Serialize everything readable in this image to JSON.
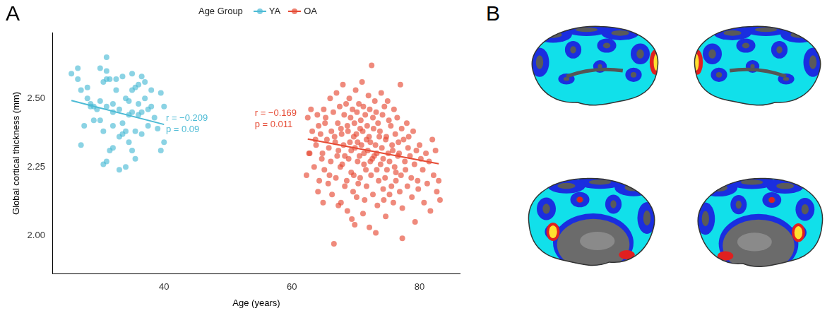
{
  "panel_labels": [
    "A",
    "B"
  ],
  "chart_data": {
    "type": "scatter",
    "legend": "top",
    "legend_title": "Age Group",
    "x_label": "Age (years)",
    "y_label": "Global cortical thickness (mm)",
    "xlim": [
      22.6,
      86.3
    ],
    "xticks": [
      40,
      60,
      80
    ],
    "ylim": [
      1.86,
      2.74
    ],
    "yticks": [
      {
        "value": 2,
        "label": "2.00"
      },
      2.25,
      {
        "value": 2.5,
        "label": "2.50"
      }
    ],
    "grid": false,
    "series": [
      {
        "name": "YA",
        "color": "#4DBBD5",
        "x": [
          25.5,
          26.5,
          26.5,
          27,
          27,
          27.5,
          28,
          28.5,
          28.5,
          29,
          29,
          29.5,
          30,
          30,
          30,
          30.5,
          30.5,
          30.5,
          31,
          31,
          31,
          31,
          31,
          31.5,
          31.5,
          32,
          32,
          32,
          32.5,
          32.5,
          33,
          33,
          33,
          33.5,
          33.5,
          33.5,
          34,
          34,
          34,
          34.5,
          34.5,
          34.5,
          35,
          35,
          35,
          35,
          35.5,
          35.5,
          35.5,
          36,
          36,
          36.5,
          36.5,
          36.5,
          37,
          37,
          37.5,
          37.5,
          38,
          38,
          38.5,
          39,
          39.5,
          39.5,
          40,
          40,
          28,
          32,
          36
        ],
        "values": [
          2.59,
          2.61,
          2.57,
          2.53,
          2.33,
          2.4,
          2.54,
          2.48,
          2.47,
          2.47,
          2.42,
          2.46,
          2.61,
          2.49,
          2.42,
          2.56,
          2.38,
          2.26,
          2.65,
          2.6,
          2.57,
          2.47,
          2.27,
          2.57,
          2.31,
          2.48,
          2.45,
          2.4,
          2.57,
          2.53,
          2.36,
          2.24,
          2.46,
          2.58,
          2.41,
          2.37,
          2.5,
          2.38,
          2.25,
          2.49,
          2.44,
          2.34,
          2.59,
          2.53,
          2.45,
          2.31,
          2.54,
          2.28,
          2.38,
          2.55,
          2.44,
          2.58,
          2.45,
          2.37,
          2.56,
          2.5,
          2.46,
          2.4,
          2.53,
          2.47,
          2.43,
          2.39,
          2.52,
          2.31,
          2.47,
          2.34,
          2.5,
          2.32,
          2.48
        ],
        "fit": {
          "x": [
            25.5,
            40
          ],
          "values": [
            2.492,
            2.405
          ]
        }
      },
      {
        "name": "OA",
        "color": "#E64B35",
        "x": [
          62.5,
          62.7,
          62.3,
          63,
          63.2,
          62.8,
          63.5,
          63.7,
          64,
          64.2,
          63.8,
          64.1,
          64.5,
          64.7,
          64.3,
          65,
          65.2,
          64.8,
          65.1,
          64.9,
          65.5,
          65.7,
          65.3,
          66,
          66.2,
          65.8,
          66.1,
          65.9,
          66.5,
          66.7,
          66.3,
          66.6,
          67,
          67.2,
          66.8,
          67.1,
          66.9,
          67.3,
          67.5,
          67.7,
          67.3,
          67.6,
          68,
          68.2,
          67.8,
          68.1,
          67.9,
          68.3,
          67.7,
          68.5,
          68.7,
          68.3,
          68.6,
          69,
          69.2,
          68.8,
          69.1,
          68.9,
          69.3,
          68.7,
          69.5,
          69.7,
          69.3,
          69.6,
          69.4,
          70,
          70.2,
          69.8,
          70.1,
          69.9,
          70.3,
          69.7,
          70.15,
          69.85,
          70.5,
          70.7,
          70.3,
          70.6,
          70.4,
          71,
          71.2,
          70.8,
          71.1,
          70.9,
          71.3,
          70.7,
          71.15,
          71.5,
          71.7,
          71.3,
          71.6,
          71.4,
          72,
          72.2,
          71.8,
          72.1,
          71.9,
          72.3,
          71.7,
          72.15,
          72.5,
          72.7,
          72.3,
          72.6,
          72.4,
          73,
          73.2,
          72.8,
          73.1,
          72.9,
          73.3,
          72.7,
          73.15,
          73.5,
          73.7,
          73.3,
          73.6,
          73.4,
          74,
          74.2,
          73.8,
          74.1,
          73.9,
          74.3,
          74.5,
          74.7,
          74.3,
          74.6,
          74.4,
          75,
          75.2,
          74.8,
          75.1,
          74.9,
          75.3,
          74.7,
          75.5,
          75.7,
          75.3,
          75.6,
          76,
          76.2,
          75.8,
          76.1,
          75.9,
          76.3,
          76.5,
          76.7,
          76.3,
          76.6,
          77,
          77.2,
          76.8,
          77.1,
          76.9,
          77.3,
          77.5,
          77.7,
          77.3,
          78,
          78.2,
          77.8,
          78.1,
          78.5,
          78.7,
          78.3,
          79,
          79.2,
          78.8,
          79.5,
          79.7,
          79.3,
          80,
          80.2,
          79.8,
          80.5,
          80.7,
          81,
          81.2,
          81.5,
          81.7,
          82,
          82.2,
          82.5,
          82.7,
          83,
          83.2
        ],
        "values": [
          2.43,
          2.3,
          2.22,
          2.46,
          2.38,
          2.3,
          2.25,
          2.35,
          2.44,
          2.4,
          2.33,
          2.16,
          2.37,
          2.28,
          2.2,
          2.46,
          2.41,
          2.3,
          2.24,
          2.12,
          2.35,
          2.19,
          2.43,
          2.5,
          2.38,
          2.32,
          2.27,
          2.22,
          2.45,
          2.36,
          2.15,
          1.97,
          2.52,
          2.41,
          2.34,
          2.29,
          2.21,
          2.11,
          2.47,
          2.39,
          2.31,
          2.25,
          2.55,
          2.44,
          2.37,
          2.33,
          2.26,
          2.18,
          2.12,
          2.48,
          2.4,
          2.29,
          2.2,
          2.5,
          2.43,
          2.38,
          2.34,
          2.28,
          2.23,
          2.09,
          2.46,
          2.36,
          2.31,
          2.16,
          2.06,
          2.53,
          2.45,
          2.41,
          2.37,
          2.32,
          2.27,
          2.22,
          2.14,
          2.04,
          2.48,
          2.39,
          2.34,
          2.29,
          2.19,
          2.56,
          2.47,
          2.42,
          2.38,
          2.33,
          2.26,
          2.21,
          2.08,
          2.44,
          2.35,
          2.3,
          2.24,
          2.13,
          2.51,
          2.46,
          2.4,
          2.36,
          2.31,
          2.27,
          2.18,
          2.03,
          2.62,
          2.43,
          2.34,
          2.28,
          2.22,
          2.49,
          2.45,
          2.39,
          2.33,
          2.29,
          2.24,
          2.15,
          2.01,
          2.41,
          2.36,
          2.3,
          2.2,
          2.11,
          2.52,
          2.44,
          2.38,
          2.32,
          2.26,
          2.17,
          2.47,
          2.35,
          2.28,
          2.21,
          2.13,
          2.49,
          2.42,
          2.36,
          2.3,
          2.24,
          2.15,
          2.07,
          2.4,
          2.33,
          2.27,
          2.18,
          2.46,
          2.37,
          2.31,
          2.25,
          2.12,
          2.23,
          2.43,
          2.34,
          2.2,
          2.29,
          2.55,
          2.39,
          2.3,
          2.22,
          2.16,
          1.99,
          2.35,
          2.27,
          2.1,
          2.41,
          2.32,
          2.24,
          2.18,
          2.29,
          2.21,
          2.36,
          2.38,
          2.26,
          2.14,
          2.31,
          2.2,
          2.05,
          2.33,
          2.28,
          2.17,
          2.24,
          2.12,
          2.3,
          2.19,
          2.27,
          2.09,
          2.35,
          2.22,
          2.31,
          2.16,
          2.2,
          2.13
        ],
        "fit": {
          "x": [
            62.5,
            83
          ],
          "values": [
            2.352,
            2.262
          ]
        }
      }
    ],
    "annotations": [
      {
        "text": "r = −0.209",
        "x": 40.3,
        "y": 2.428,
        "color": "#4DBBD5"
      },
      {
        "text": "p = 0.09",
        "x": 40.3,
        "y": 2.385,
        "color": "#4DBBD5"
      },
      {
        "text": "r = −0.169",
        "x": 54.2,
        "y": 2.445,
        "color": "#E64B35"
      },
      {
        "text": "p = 0.011",
        "x": 54.2,
        "y": 2.403,
        "color": "#E64B35"
      }
    ]
  }
}
